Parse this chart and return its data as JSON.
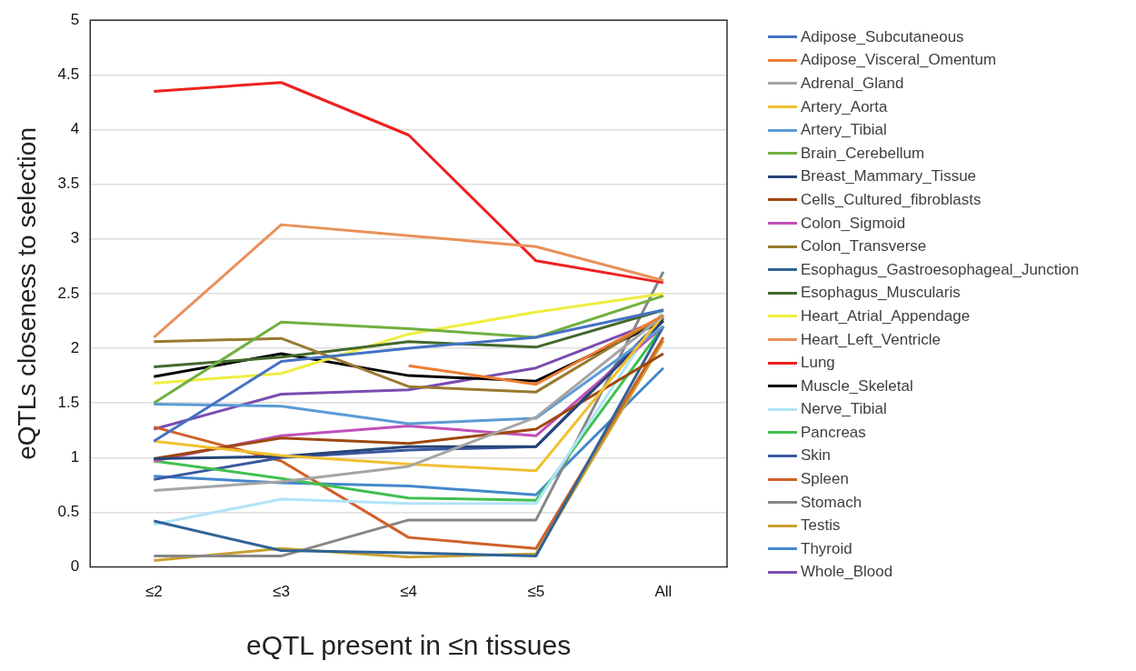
{
  "chart_data": {
    "type": "line",
    "xlabel": "eQTL present in ≤n tissues",
    "ylabel": "eQTLs closeness to selection",
    "categories": [
      "≤2",
      "≤3",
      "≤4",
      "≤5",
      "All"
    ],
    "ylim": [
      0,
      5
    ],
    "yticks": [
      0,
      0.5,
      1,
      1.5,
      2,
      2.5,
      3,
      3.5,
      4,
      4.5,
      5
    ],
    "grid": "y",
    "legend": "right",
    "marker": "none",
    "line_style": "solid",
    "series": [
      {
        "name": "Adipose_Subcutaneous",
        "color": "#4472c4",
        "values": [
          1.15,
          1.88,
          2.0,
          2.1,
          2.35
        ]
      },
      {
        "name": "Adipose_Visceral_Omentum",
        "color": "#ed7d31",
        "values": [
          null,
          null,
          1.84,
          1.67,
          2.3
        ]
      },
      {
        "name": "Adrenal_Gland",
        "color": "#a5a5a5",
        "values": [
          0.7,
          0.78,
          0.92,
          1.37,
          2.3
        ]
      },
      {
        "name": "Artery_Aorta",
        "color": "#f0c030",
        "values": [
          1.15,
          1.02,
          0.94,
          0.88,
          2.3
        ]
      },
      {
        "name": "Artery_Tibial",
        "color": "#5b9bd5",
        "values": [
          1.49,
          1.47,
          1.31,
          1.36,
          2.2
        ]
      },
      {
        "name": "Brain_Cerebellum",
        "color": "#70b040",
        "values": [
          1.5,
          2.24,
          2.18,
          2.1,
          2.48
        ]
      },
      {
        "name": "Breast_Mammary_Tissue",
        "color": "#264478",
        "values": [
          0.99,
          1.01,
          1.1,
          1.1,
          2.25
        ]
      },
      {
        "name": "Cells_Cultured_fibroblasts",
        "color": "#9e480e",
        "values": [
          0.99,
          1.18,
          1.13,
          1.26,
          1.95
        ]
      },
      {
        "name": "Colon_Sigmoid",
        "color": "#c050b8",
        "values": [
          0.97,
          1.2,
          1.29,
          1.2,
          2.2
        ]
      },
      {
        "name": "Colon_Transverse",
        "color": "#997a30",
        "values": [
          2.06,
          2.09,
          1.65,
          1.6,
          2.3
        ]
      },
      {
        "name": "Esophagus_Gastroesophageal_Junction",
        "color": "#2f6496",
        "values": [
          0.42,
          0.15,
          0.13,
          0.1,
          2.2
        ]
      },
      {
        "name": "Esophagus_Muscularis",
        "color": "#43682b",
        "values": [
          1.83,
          1.92,
          2.06,
          2.01,
          2.35
        ]
      },
      {
        "name": "Heart_Atrial_Appendage",
        "color": "#eeee40",
        "values": [
          1.68,
          1.77,
          2.13,
          2.33,
          2.5
        ]
      },
      {
        "name": "Heart_Left_Ventricle",
        "color": "#e8915a",
        "values": [
          2.1,
          3.13,
          3.03,
          2.93,
          2.62
        ]
      },
      {
        "name": "Lung",
        "color": "#ee2020",
        "values": [
          4.35,
          4.43,
          3.95,
          2.8,
          2.6
        ]
      },
      {
        "name": "Muscle_Skeletal",
        "color": "#000000",
        "values": [
          1.74,
          1.95,
          1.75,
          1.7,
          2.25
        ]
      },
      {
        "name": "Nerve_Tibial",
        "color": "#b0e4f8",
        "values": [
          0.39,
          0.62,
          0.58,
          0.58,
          2.35
        ]
      },
      {
        "name": "Pancreas",
        "color": "#40c050",
        "values": [
          0.97,
          0.81,
          0.63,
          0.61,
          2.2
        ]
      },
      {
        "name": "Skin",
        "color": "#3a58a0",
        "values": [
          0.8,
          1.0,
          1.07,
          1.1,
          2.28
        ]
      },
      {
        "name": "Spleen",
        "color": "#d06028",
        "values": [
          1.28,
          0.97,
          0.27,
          0.17,
          2.1
        ]
      },
      {
        "name": "Stomach",
        "color": "#868686",
        "values": [
          0.1,
          0.1,
          0.43,
          0.43,
          2.7
        ]
      },
      {
        "name": "Testis",
        "color": "#c8a030",
        "values": [
          0.06,
          0.17,
          0.09,
          0.12,
          2.07
        ]
      },
      {
        "name": "Thyroid",
        "color": "#4488cc",
        "values": [
          0.83,
          0.77,
          0.74,
          0.66,
          1.82
        ]
      },
      {
        "name": "Whole_Blood",
        "color": "#7a4cb0",
        "values": [
          1.26,
          1.58,
          1.62,
          1.82,
          2.27
        ]
      }
    ]
  }
}
